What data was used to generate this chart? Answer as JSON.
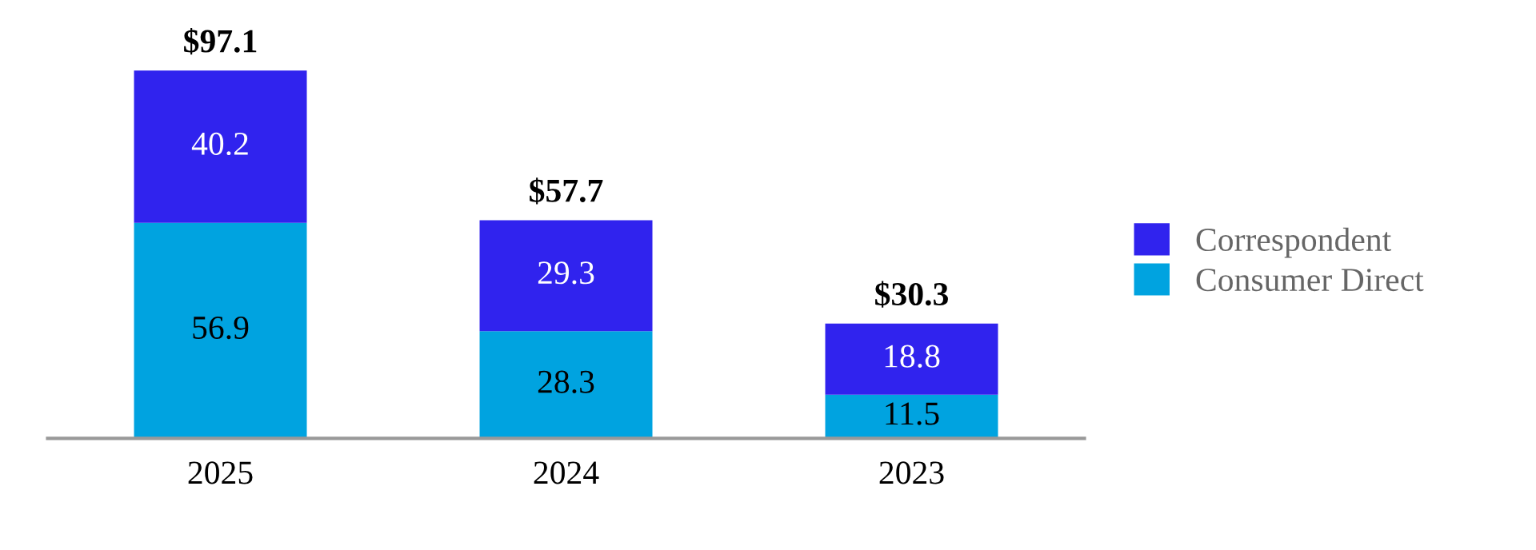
{
  "chart_data": {
    "type": "bar",
    "stacked": true,
    "data_labels": true,
    "legend": "right",
    "grid": false,
    "categories": [
      "2025",
      "2024",
      "2023"
    ],
    "series": [
      {
        "name": "Consumer Direct",
        "color": "#00a3e0",
        "values": [
          56.9,
          28.3,
          11.5
        ]
      },
      {
        "name": "Correspondent",
        "color": "#3023ee",
        "values": [
          40.2,
          29.3,
          18.8
        ]
      }
    ],
    "totals": [
      "$97.1",
      "$57.7",
      "$30.3"
    ]
  }
}
